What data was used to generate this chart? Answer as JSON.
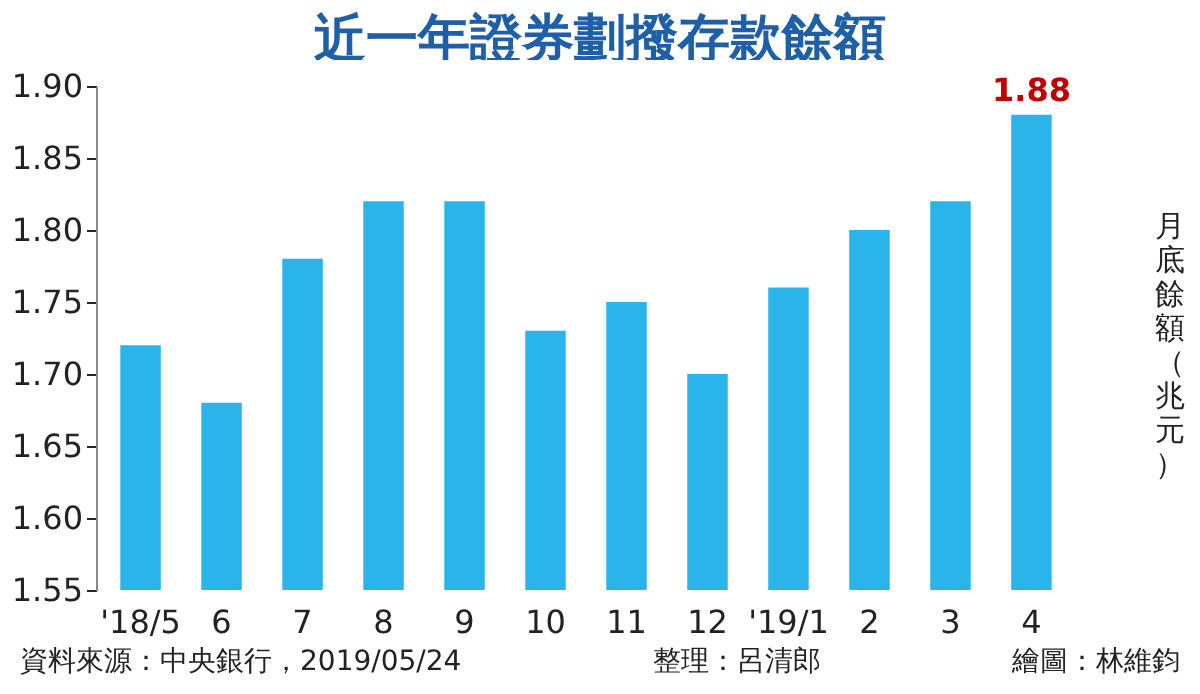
{
  "chart_data": {
    "type": "bar",
    "title": "近一年證券劃撥存款餘額",
    "ylabel": "月底餘額（兆元）",
    "categories": [
      "'18/5",
      "6",
      "7",
      "8",
      "9",
      "10",
      "11",
      "12",
      "'19/1",
      "2",
      "3",
      "4"
    ],
    "values": [
      1.72,
      1.68,
      1.78,
      1.82,
      1.82,
      1.73,
      1.75,
      1.7,
      1.76,
      1.8,
      1.82,
      1.88
    ],
    "value_labels": [
      null,
      null,
      null,
      null,
      null,
      null,
      null,
      null,
      null,
      null,
      null,
      "1.88"
    ],
    "color": "#29b5ea",
    "ylim": [
      1.55,
      1.9
    ],
    "yticks": [
      1.55,
      {
        "value": 1.6,
        "label": "1.60"
      },
      1.65,
      {
        "value": 1.7,
        "label": "1.70"
      },
      1.75,
      {
        "value": 1.8,
        "label": "1.80"
      },
      1.85,
      {
        "value": 1.9,
        "label": "1.90"
      }
    ],
    "grid": false,
    "annotations": [
      "資料來源：中央銀行，2019/05/24",
      "整理：呂清郎",
      "繪圖：林維鈞"
    ]
  }
}
